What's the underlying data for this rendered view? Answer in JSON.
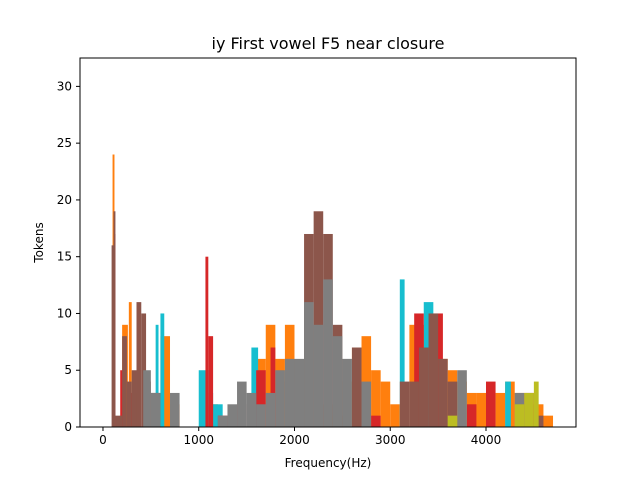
{
  "chart_data": {
    "type": "bar",
    "title": "iy First vowel F5 near closure",
    "xlabel": "Frequency(Hz)",
    "ylabel": "Tokens",
    "xlim": [
      -240,
      4940
    ],
    "ylim": [
      0,
      32.5
    ],
    "xticks": [
      0,
      1000,
      2000,
      3000,
      4000
    ],
    "yticks": [
      0,
      5,
      10,
      15,
      20,
      25,
      30
    ],
    "grid": false,
    "legend": "none",
    "series": [
      {
        "color": "#ff7f0e",
        "bins": [
          {
            "x0": 100,
            "x1": 120,
            "y": 24
          },
          {
            "x0": 200,
            "x1": 260,
            "y": 9
          },
          {
            "x0": 270,
            "x1": 300,
            "y": 11
          },
          {
            "x0": 600,
            "x1": 700,
            "y": 8
          },
          {
            "x0": 700,
            "x1": 800,
            "y": 2
          },
          {
            "x0": 1100,
            "x1": 1200,
            "y": 2
          },
          {
            "x0": 1600,
            "x1": 1700,
            "y": 6
          },
          {
            "x0": 1700,
            "x1": 1800,
            "y": 9
          },
          {
            "x0": 1800,
            "x1": 1900,
            "y": 6
          },
          {
            "x0": 1900,
            "x1": 2000,
            "y": 9
          },
          {
            "x0": 2000,
            "x1": 2050,
            "y": 4
          },
          {
            "x0": 2300,
            "x1": 2400,
            "y": 2
          },
          {
            "x0": 2400,
            "x1": 2500,
            "y": 1
          },
          {
            "x0": 2500,
            "x1": 2600,
            "y": 4
          },
          {
            "x0": 2600,
            "x1": 2700,
            "y": 7
          },
          {
            "x0": 2700,
            "x1": 2800,
            "y": 8
          },
          {
            "x0": 2800,
            "x1": 2900,
            "y": 5
          },
          {
            "x0": 2900,
            "x1": 3000,
            "y": 4
          },
          {
            "x0": 3000,
            "x1": 3100,
            "y": 2
          },
          {
            "x0": 3200,
            "x1": 3300,
            "y": 9
          },
          {
            "x0": 3300,
            "x1": 3400,
            "y": 9
          },
          {
            "x0": 3500,
            "x1": 3600,
            "y": 6
          },
          {
            "x0": 3600,
            "x1": 3700,
            "y": 5
          },
          {
            "x0": 3700,
            "x1": 3800,
            "y": 4
          },
          {
            "x0": 3800,
            "x1": 3900,
            "y": 3
          },
          {
            "x0": 3900,
            "x1": 4000,
            "y": 3
          },
          {
            "x0": 4100,
            "x1": 4200,
            "y": 3
          },
          {
            "x0": 4200,
            "x1": 4300,
            "y": 4
          },
          {
            "x0": 4300,
            "x1": 4400,
            "y": 3
          },
          {
            "x0": 4400,
            "x1": 4500,
            "y": 2
          },
          {
            "x0": 4500,
            "x1": 4600,
            "y": 2
          },
          {
            "x0": 4600,
            "x1": 4700,
            "y": 1
          }
        ]
      },
      {
        "color": "#17becf",
        "bins": [
          {
            "x0": 100,
            "x1": 120,
            "y": 14
          },
          {
            "x0": 550,
            "x1": 580,
            "y": 9
          },
          {
            "x0": 600,
            "x1": 640,
            "y": 10
          },
          {
            "x0": 1000,
            "x1": 1100,
            "y": 5
          },
          {
            "x0": 1100,
            "x1": 1150,
            "y": 3
          },
          {
            "x0": 1150,
            "x1": 1250,
            "y": 2
          },
          {
            "x0": 1550,
            "x1": 1620,
            "y": 7
          },
          {
            "x0": 3100,
            "x1": 3150,
            "y": 13
          },
          {
            "x0": 3350,
            "x1": 3450,
            "y": 11
          },
          {
            "x0": 4200,
            "x1": 4260,
            "y": 4
          }
        ]
      },
      {
        "color": "#d62728",
        "bins": [
          {
            "x0": 110,
            "x1": 130,
            "y": 17
          },
          {
            "x0": 180,
            "x1": 240,
            "y": 5
          },
          {
            "x0": 250,
            "x1": 350,
            "y": 3
          },
          {
            "x0": 1070,
            "x1": 1100,
            "y": 15
          },
          {
            "x0": 1100,
            "x1": 1150,
            "y": 8
          },
          {
            "x0": 1200,
            "x1": 1300,
            "y": 1
          },
          {
            "x0": 1400,
            "x1": 1500,
            "y": 2
          },
          {
            "x0": 1600,
            "x1": 1700,
            "y": 5
          },
          {
            "x0": 1750,
            "x1": 1800,
            "y": 7
          },
          {
            "x0": 1900,
            "x1": 2000,
            "y": 4
          },
          {
            "x0": 2800,
            "x1": 2900,
            "y": 1
          },
          {
            "x0": 3250,
            "x1": 3350,
            "y": 10
          },
          {
            "x0": 3450,
            "x1": 3550,
            "y": 10
          },
          {
            "x0": 3800,
            "x1": 3900,
            "y": 2
          },
          {
            "x0": 4000,
            "x1": 4100,
            "y": 4
          },
          {
            "x0": 4400,
            "x1": 4500,
            "y": 3
          }
        ]
      },
      {
        "color": "#8c564b",
        "bins": [
          {
            "x0": 90,
            "x1": 110,
            "y": 16
          },
          {
            "x0": 110,
            "x1": 130,
            "y": 19
          },
          {
            "x0": 130,
            "x1": 200,
            "y": 1
          },
          {
            "x0": 200,
            "x1": 250,
            "y": 8
          },
          {
            "x0": 250,
            "x1": 300,
            "y": 4
          },
          {
            "x0": 300,
            "x1": 350,
            "y": 5
          },
          {
            "x0": 350,
            "x1": 400,
            "y": 11
          },
          {
            "x0": 400,
            "x1": 450,
            "y": 10
          },
          {
            "x0": 450,
            "x1": 500,
            "y": 4
          },
          {
            "x0": 500,
            "x1": 600,
            "y": 3
          },
          {
            "x0": 2100,
            "x1": 2200,
            "y": 17
          },
          {
            "x0": 2200,
            "x1": 2300,
            "y": 19
          },
          {
            "x0": 2300,
            "x1": 2400,
            "y": 17
          },
          {
            "x0": 2400,
            "x1": 2500,
            "y": 9
          },
          {
            "x0": 2600,
            "x1": 2700,
            "y": 7
          },
          {
            "x0": 3100,
            "x1": 3200,
            "y": 4
          },
          {
            "x0": 3200,
            "x1": 3300,
            "y": 4
          },
          {
            "x0": 3300,
            "x1": 3400,
            "y": 7
          },
          {
            "x0": 3400,
            "x1": 3500,
            "y": 10
          },
          {
            "x0": 3500,
            "x1": 3600,
            "y": 6
          },
          {
            "x0": 3600,
            "x1": 3700,
            "y": 4
          },
          {
            "x0": 4500,
            "x1": 4600,
            "y": 1
          }
        ]
      },
      {
        "color": "#7f7f7f",
        "bins": [
          {
            "x0": 420,
            "x1": 500,
            "y": 5
          },
          {
            "x0": 500,
            "x1": 600,
            "y": 3
          },
          {
            "x0": 700,
            "x1": 800,
            "y": 3
          },
          {
            "x0": 1200,
            "x1": 1300,
            "y": 1
          },
          {
            "x0": 1300,
            "x1": 1400,
            "y": 2
          },
          {
            "x0": 1400,
            "x1": 1500,
            "y": 4
          },
          {
            "x0": 1500,
            "x1": 1600,
            "y": 3
          },
          {
            "x0": 1600,
            "x1": 1700,
            "y": 2
          },
          {
            "x0": 1700,
            "x1": 1800,
            "y": 3
          },
          {
            "x0": 1800,
            "x1": 1900,
            "y": 5
          },
          {
            "x0": 1900,
            "x1": 2000,
            "y": 6
          },
          {
            "x0": 2000,
            "x1": 2100,
            "y": 6
          },
          {
            "x0": 2100,
            "x1": 2200,
            "y": 11
          },
          {
            "x0": 2200,
            "x1": 2300,
            "y": 9
          },
          {
            "x0": 2300,
            "x1": 2400,
            "y": 13
          },
          {
            "x0": 2400,
            "x1": 2500,
            "y": 8
          },
          {
            "x0": 2500,
            "x1": 2600,
            "y": 6
          },
          {
            "x0": 2700,
            "x1": 2800,
            "y": 4
          },
          {
            "x0": 3700,
            "x1": 3800,
            "y": 5
          },
          {
            "x0": 4300,
            "x1": 4400,
            "y": 3
          }
        ]
      },
      {
        "color": "#bcbd22",
        "bins": [
          {
            "x0": 3600,
            "x1": 3700,
            "y": 1
          },
          {
            "x0": 4300,
            "x1": 4400,
            "y": 2
          },
          {
            "x0": 4400,
            "x1": 4500,
            "y": 3
          },
          {
            "x0": 4500,
            "x1": 4550,
            "y": 4
          }
        ]
      }
    ]
  }
}
